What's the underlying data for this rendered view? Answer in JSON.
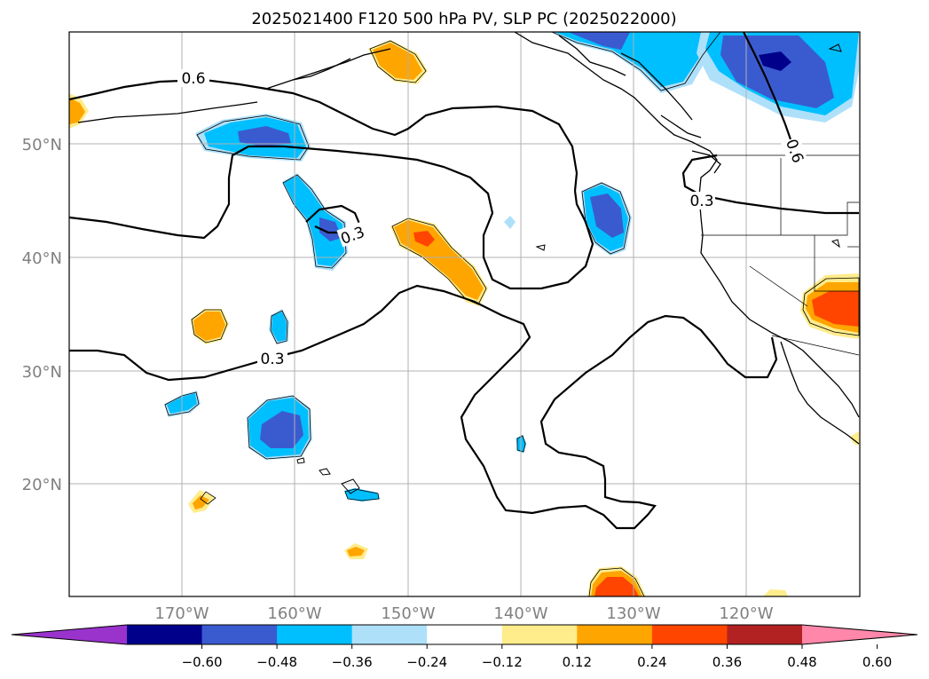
{
  "title": "2025021400 F120 500 hPa PV, SLP PC (2025022000)",
  "map": {
    "lat_labels": [
      "50°N",
      "40°N",
      "30°N",
      "20°N"
    ],
    "lon_labels": [
      "170°W",
      "160°W",
      "150°W",
      "140°W",
      "130°W",
      "120°W"
    ],
    "contour_labels": [
      "0.6",
      "0.3",
      "0.3",
      "0.6",
      "0.3"
    ]
  },
  "colorbar": {
    "tick_labels": [
      "−0.60",
      "−0.48",
      "−0.36",
      "−0.24",
      "−0.12",
      "0.12",
      "0.24",
      "0.36",
      "0.48",
      "0.60"
    ],
    "colors": [
      "#9933cc",
      "#00008b",
      "#3a5bd0",
      "#00bfff",
      "#aee0fa",
      "#ffffff",
      "#ffec8b",
      "#ffa500",
      "#ff4500",
      "#b22222",
      "#ff88aa"
    ]
  },
  "colors": {
    "neg_light": "#aee0fa",
    "neg_mid": "#00bfff",
    "neg_strong": "#3a5bd0",
    "neg_max": "#00008b",
    "pos_light": "#ffec8b",
    "pos_mid": "#ffa500",
    "pos_strong": "#ff4500",
    "grid": "#b0b0b0"
  }
}
